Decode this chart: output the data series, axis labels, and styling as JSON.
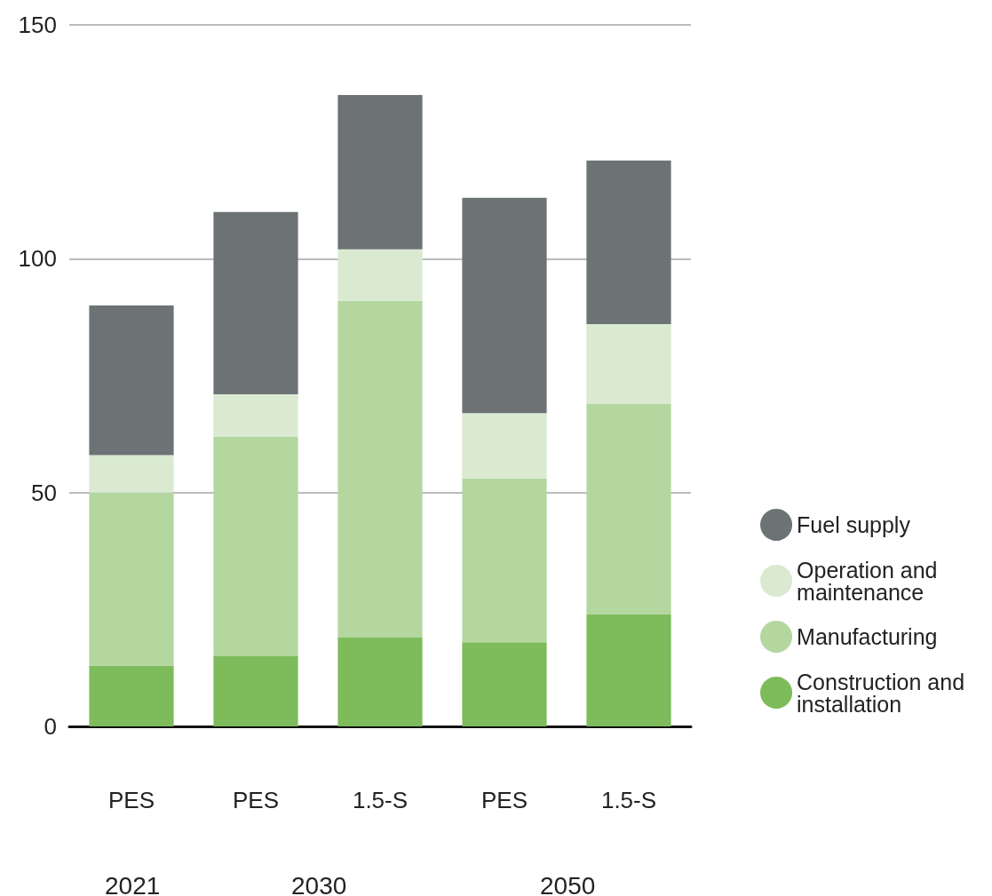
{
  "chart_data": {
    "type": "bar",
    "stacked": true,
    "categories": [
      "PES",
      "PES",
      "1.5-S",
      "PES",
      "1.5-S"
    ],
    "series": [
      {
        "name": "Construction and installation",
        "color": "#7dbb5b",
        "values": [
          13,
          15,
          19,
          18,
          24
        ]
      },
      {
        "name": "Manufacturing",
        "color": "#b3d79f",
        "values": [
          37,
          47,
          72,
          35,
          45
        ]
      },
      {
        "name": "Operation and maintenance",
        "color": "#d9ead0",
        "values": [
          8,
          9,
          11,
          14,
          17
        ]
      },
      {
        "name": "Fuel supply",
        "color": "#6d7275",
        "values": [
          32,
          39,
          33,
          46,
          35
        ]
      }
    ],
    "annotations": [
      "2021",
      "2030",
      "2050"
    ],
    "ylim": [
      0,
      150
    ],
    "yticks": [
      0,
      50,
      100,
      150
    ],
    "grid": "y",
    "legend": "right"
  }
}
